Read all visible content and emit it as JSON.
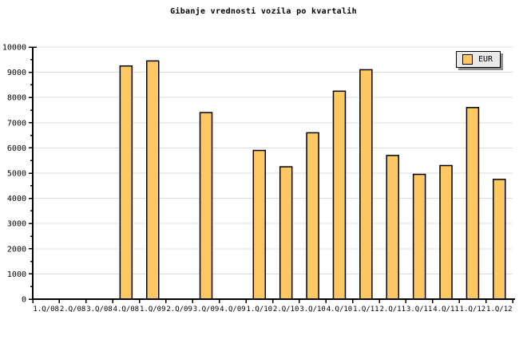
{
  "chart_data": {
    "type": "bar",
    "title": "Gibanje vrednosti vozila po kvartalih",
    "legend": {
      "label": "EUR",
      "position": "top-right",
      "box_fill": "#e9e9e9",
      "shadow_color": "#8e8e8e"
    },
    "categories": [
      "1.Q/08",
      "2.Q/08",
      "3.Q/08",
      "4.Q/08",
      "1.Q/09",
      "2.Q/09",
      "3.Q/09",
      "4.Q/09",
      "1.Q/10",
      "2.Q/10",
      "3.Q/10",
      "4.Q/10",
      "1.Q/11",
      "2.Q/11",
      "3.Q/11",
      "4.Q/11",
      "1.Q/12",
      "1.Q/12"
    ],
    "values": [
      null,
      null,
      null,
      9250,
      9450,
      null,
      7400,
      null,
      5900,
      5250,
      6600,
      8250,
      9100,
      5700,
      4950,
      5300,
      7600,
      4750
    ],
    "xlabel": "",
    "ylabel": "",
    "ylim": [
      0,
      10000
    ],
    "y_major_step": 1000,
    "y_minor_step": 500,
    "y_tick_labels": [
      "0",
      "1000",
      "2000",
      "3000",
      "4000",
      "5000",
      "6000",
      "7000",
      "8000",
      "9000",
      "10000"
    ],
    "grid": "horizontal-major",
    "bar_color": "#fdc863",
    "bar_border_color": "#000000",
    "gridline_color": "#dcdcdc",
    "axis_color": "#000000",
    "background": "#ffffff"
  }
}
